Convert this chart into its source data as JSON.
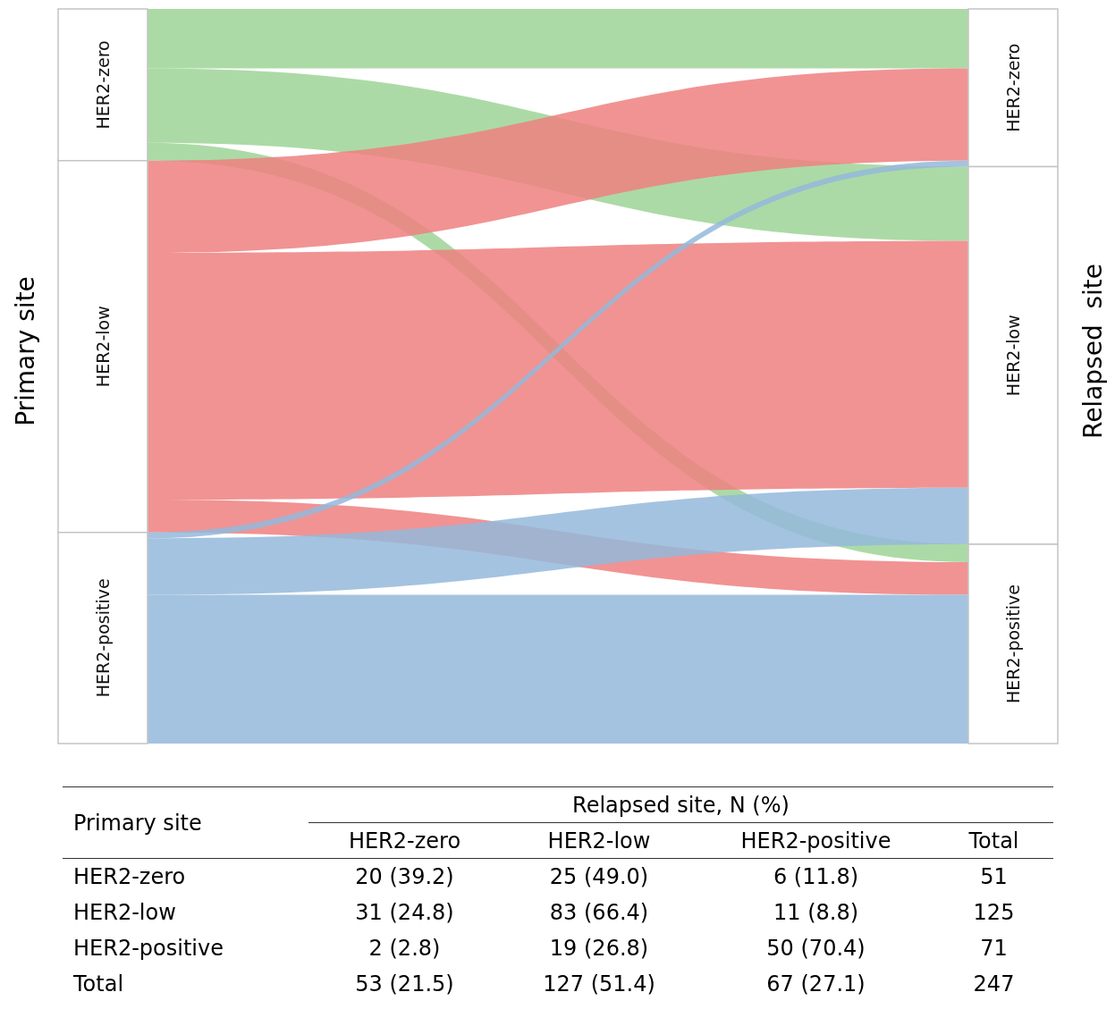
{
  "chart_data": {
    "type": "other",
    "ylabel": "Primary site",
    "y2label": "Relapsed  site",
    "xlabel": "Relapsed site, N (%)",
    "categories": [
      "HER2-zero",
      "HER2-low",
      "HER2-positive"
    ],
    "y_categories": [
      "HER2-zero",
      "HER2-low",
      "HER2-positive"
    ],
    "series": [
      {
        "color": "#9dd396",
        "values": [
          20,
          25,
          6
        ],
        "value_labels": [
          "20 (39.2)",
          "25 (49.0)",
          "6 (11.8)"
        ]
      },
      {
        "color": "#ef8080",
        "values": [
          31,
          83,
          11
        ],
        "value_labels": [
          "31 (24.8)",
          "83 (66.4)",
          "11 (8.8)"
        ]
      },
      {
        "color": "#94b9da",
        "values": [
          2,
          19,
          50
        ],
        "value_labels": [
          "2 (2.8)",
          "19 (26.8)",
          "50 (70.4)"
        ]
      }
    ],
    "totals": [
      "51",
      "125",
      "71"
    ],
    "annotations": [
      "Total",
      "Total",
      "53 (21.5)",
      "127 (51.4)",
      "67 (27.1)",
      "247"
    ]
  }
}
